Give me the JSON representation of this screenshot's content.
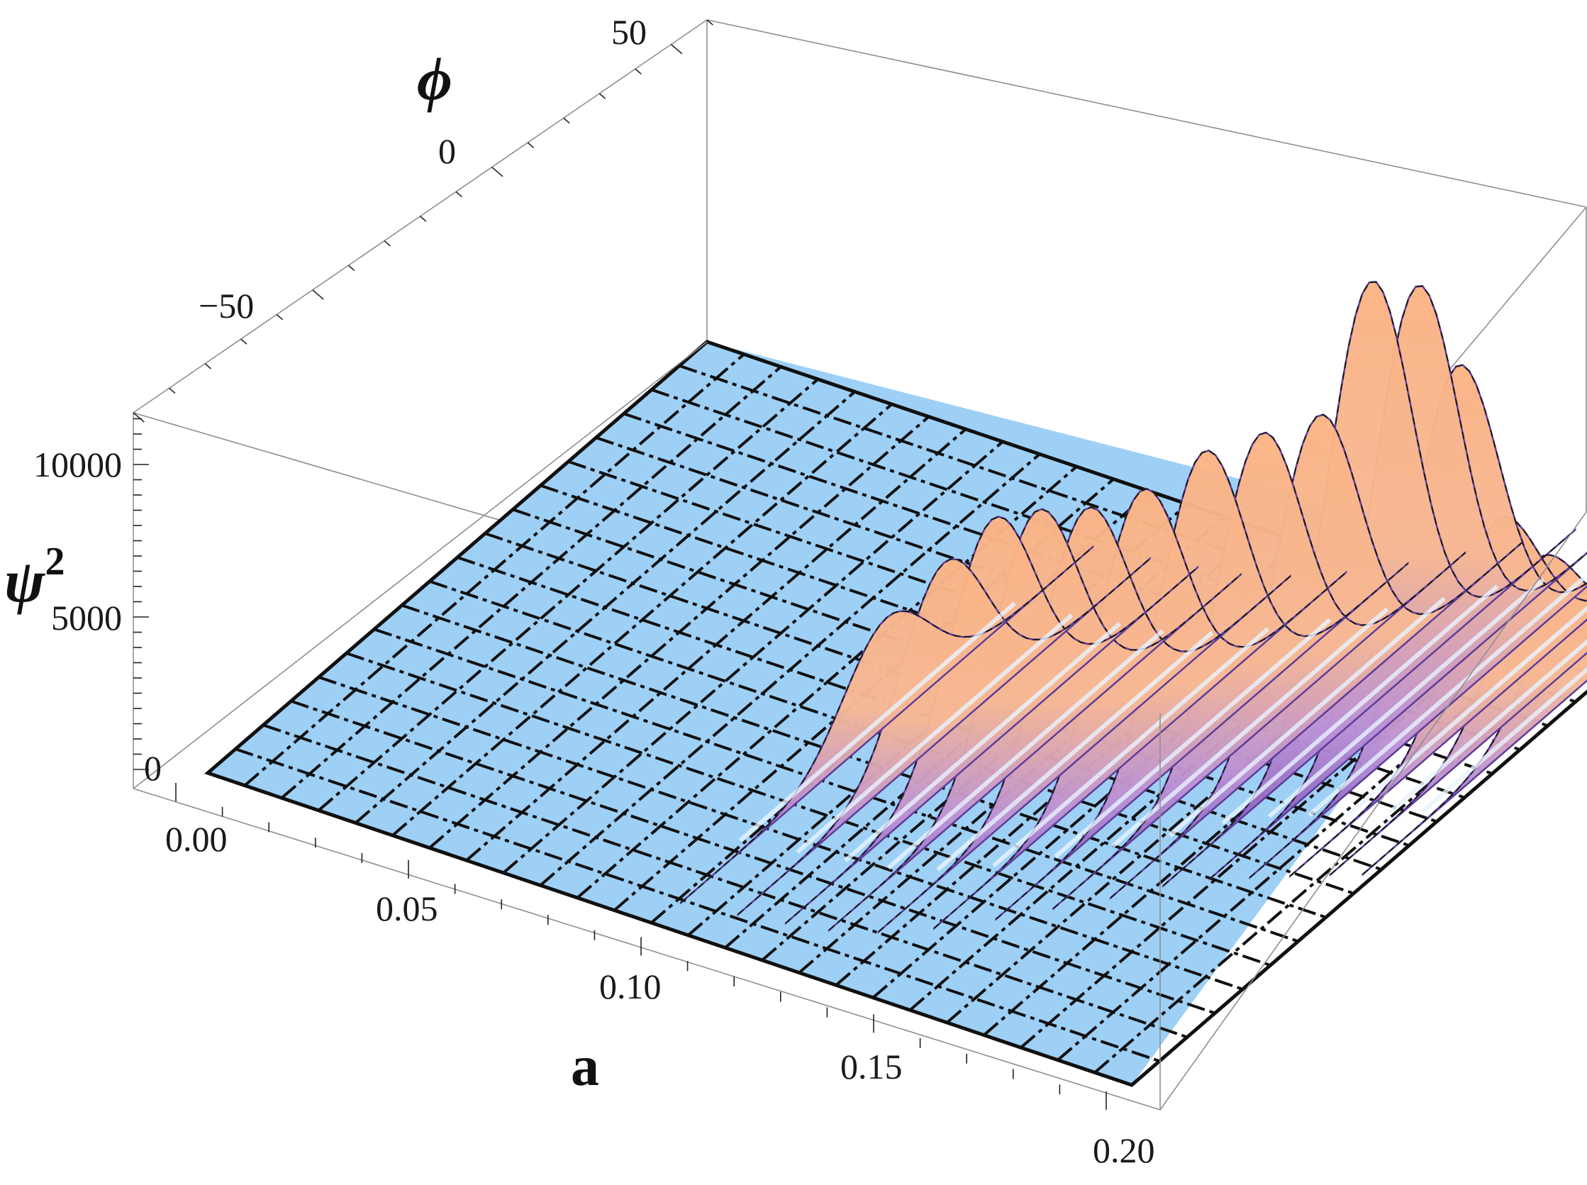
{
  "chart_data": {
    "type": "surface3d",
    "axes": {
      "a": {
        "label": "a",
        "ticks": [
          "0.00",
          "0.05",
          "0.10",
          "0.15",
          "0.20"
        ],
        "range": [
          0,
          0.2
        ]
      },
      "phi": {
        "label": "ϕ",
        "ticks": [
          "−50",
          "0",
          "50"
        ],
        "range": [
          -80,
          80
        ]
      },
      "z": {
        "label": "ψ",
        "label_sup": "2",
        "ticks": [
          "0",
          "5000",
          "10000"
        ],
        "range": [
          -800,
          11500
        ]
      }
    },
    "surface": {
      "description_z": "ψ²",
      "ridges": [
        {
          "a": 0.097,
          "phi": -6,
          "peak": 2900
        },
        {
          "a": 0.108,
          "phi": -4,
          "peak": 4700
        },
        {
          "a": 0.117,
          "phi": -2,
          "peak": 6100
        },
        {
          "a": 0.125,
          "phi": 0,
          "peak": 6500
        },
        {
          "a": 0.133,
          "phi": 4,
          "peak": 6600
        },
        {
          "a": 0.141,
          "phi": 10,
          "peak": 7000
        },
        {
          "a": 0.149,
          "phi": 18,
          "peak": 7800
        },
        {
          "a": 0.156,
          "phi": 26,
          "peak": 8000
        },
        {
          "a": 0.163,
          "phi": 34,
          "peak": 8200
        },
        {
          "a": 0.169,
          "phi": 42,
          "peak": 11500
        },
        {
          "a": 0.175,
          "phi": 48,
          "peak": 11200
        },
        {
          "a": 0.181,
          "phi": 52,
          "peak": 9000
        },
        {
          "a": 0.187,
          "phi": 56,
          "peak": 4800
        },
        {
          "a": 0.193,
          "phi": 60,
          "peak": 3700
        },
        {
          "a": 0.198,
          "phi": 63,
          "peak": 2600
        }
      ]
    },
    "colors": {
      "base": "#9ed0f6",
      "ridge_high": "#f9b48c",
      "ridge_low": "#7a52b8",
      "grid": "#101010",
      "box": "#8f8f8f"
    },
    "grid": true
  }
}
